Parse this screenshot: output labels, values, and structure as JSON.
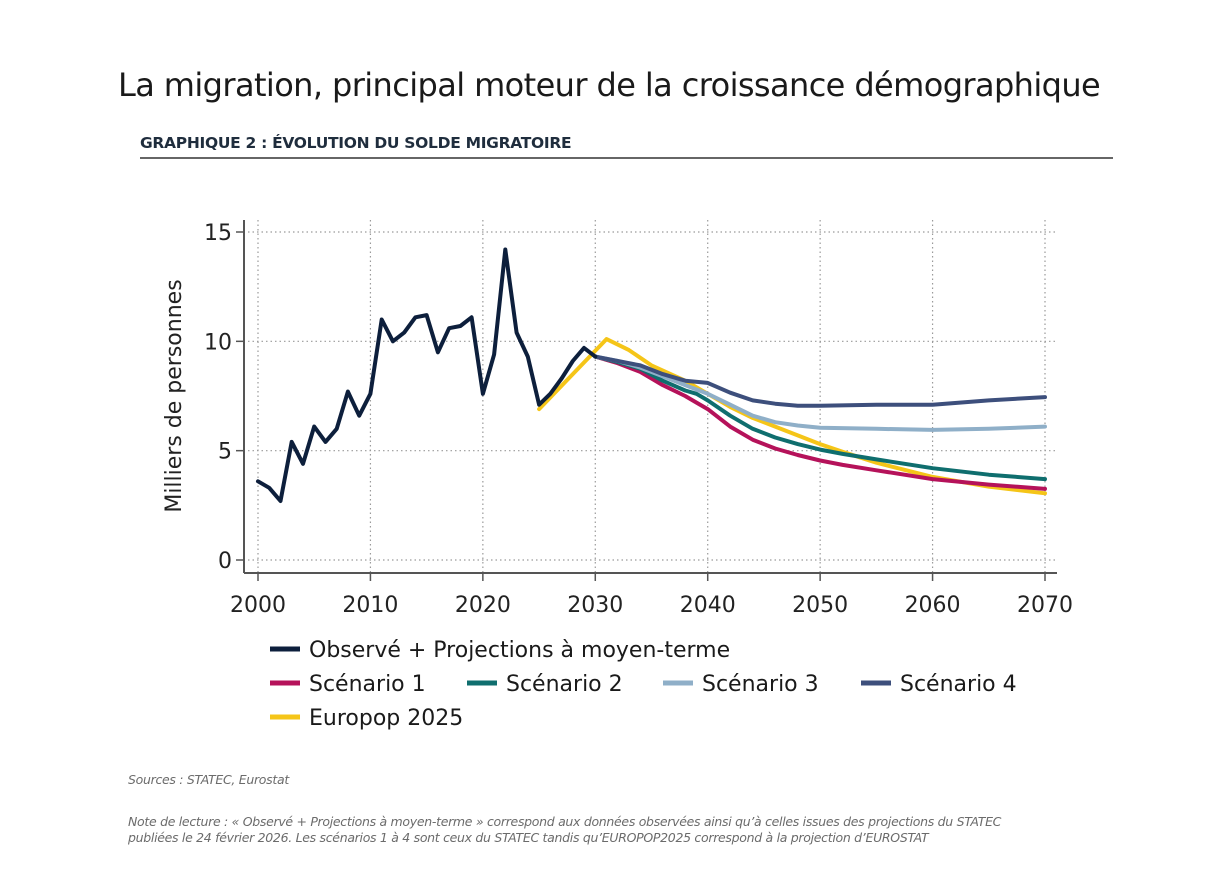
{
  "page": {
    "title": "La migration, principal moteur de la croissance démographique",
    "subtitle": "GRAPHIQUE 2 : ÉVOLUTION DU SOLDE MIGRATOIRE",
    "sources": "Sources : STATEC, Eurostat",
    "note_line1": "Note de lecture : « Observé + Projections à moyen-terme » correspond aux données observées ainsi qu’à celles issues des projections du STATEC",
    "note_line2": "publiées le 24 février 2026. Les scénarios 1 à 4 sont ceux du STATEC tandis qu’EUROPOP2025 correspond à la projection d’EUROSTAT"
  },
  "chart_data": {
    "type": "line",
    "title": "GRAPHIQUE 2 : ÉVOLUTION DU SOLDE MIGRATOIRE",
    "xlabel": "",
    "ylabel": "Milliers de personnes",
    "xlim": [
      2000,
      2070
    ],
    "ylim": [
      0,
      15
    ],
    "xticks": [
      2000,
      2010,
      2020,
      2030,
      2040,
      2050,
      2060,
      2070
    ],
    "yticks": [
      0,
      5,
      10,
      15
    ],
    "grid": true,
    "legend_position": "bottom",
    "series": [
      {
        "name": "Observé + Projections à moyen-terme",
        "color": "#0d1f3c",
        "x": [
          2000,
          2001,
          2002,
          2003,
          2004,
          2005,
          2006,
          2007,
          2008,
          2009,
          2010,
          2011,
          2012,
          2013,
          2014,
          2015,
          2016,
          2017,
          2018,
          2019,
          2020,
          2021,
          2022,
          2023,
          2024,
          2025,
          2026,
          2027,
          2028,
          2029,
          2030
        ],
        "values": [
          3.6,
          3.3,
          2.7,
          5.4,
          4.4,
          6.1,
          5.4,
          6.0,
          7.7,
          6.6,
          7.6,
          11.0,
          10.0,
          10.4,
          11.1,
          11.2,
          9.5,
          10.6,
          10.7,
          11.1,
          7.6,
          9.4,
          14.2,
          10.4,
          9.3,
          7.1,
          7.6,
          8.3,
          9.1,
          9.7,
          9.3
        ]
      },
      {
        "name": "Scénario 1",
        "color": "#b5125a",
        "x": [
          2030,
          2032,
          2034,
          2036,
          2038,
          2039,
          2040,
          2042,
          2044,
          2046,
          2048,
          2050,
          2052,
          2055,
          2060,
          2065,
          2070
        ],
        "values": [
          9.3,
          9.0,
          8.6,
          8.0,
          7.5,
          7.2,
          6.9,
          6.1,
          5.5,
          5.1,
          4.8,
          4.55,
          4.35,
          4.1,
          3.7,
          3.45,
          3.25
        ]
      },
      {
        "name": "Scénario 2",
        "color": "#0f6e6e",
        "x": [
          2030,
          2032,
          2034,
          2036,
          2038,
          2039,
          2040,
          2042,
          2044,
          2046,
          2048,
          2050,
          2052,
          2055,
          2060,
          2065,
          2070
        ],
        "values": [
          9.3,
          9.05,
          8.75,
          8.2,
          7.75,
          7.6,
          7.3,
          6.6,
          6.0,
          5.6,
          5.3,
          5.05,
          4.85,
          4.6,
          4.2,
          3.9,
          3.7
        ]
      },
      {
        "name": "Scénario 3",
        "color": "#8fafc8",
        "x": [
          2030,
          2032,
          2034,
          2036,
          2038,
          2040,
          2042,
          2044,
          2046,
          2048,
          2050,
          2055,
          2060,
          2065,
          2070
        ],
        "values": [
          9.3,
          9.1,
          8.8,
          8.4,
          8.0,
          7.6,
          7.1,
          6.6,
          6.3,
          6.15,
          6.05,
          6.0,
          5.95,
          6.0,
          6.1
        ]
      },
      {
        "name": "Scénario 4",
        "color": "#3d4f7c",
        "x": [
          2030,
          2032,
          2034,
          2036,
          2038,
          2040,
          2042,
          2044,
          2046,
          2048,
          2050,
          2055,
          2060,
          2065,
          2070
        ],
        "values": [
          9.3,
          9.1,
          8.9,
          8.5,
          8.2,
          8.1,
          7.65,
          7.3,
          7.15,
          7.05,
          7.05,
          7.1,
          7.1,
          7.3,
          7.45
        ]
      },
      {
        "name": "Europop 2025",
        "color": "#f5c518",
        "x": [
          2025,
          2028,
          2031,
          2033,
          2035,
          2038,
          2040,
          2042,
          2044,
          2046,
          2048,
          2050,
          2052,
          2055,
          2060,
          2065,
          2070
        ],
        "values": [
          6.9,
          8.5,
          10.1,
          9.6,
          8.9,
          8.2,
          7.6,
          7.0,
          6.5,
          6.1,
          5.7,
          5.3,
          4.95,
          4.45,
          3.8,
          3.35,
          3.05
        ]
      }
    ],
    "legend": [
      [
        "Observé + Projections à moyen-terme"
      ],
      [
        "Scénario 1",
        "Scénario 2",
        "Scénario 3",
        "Scénario 4"
      ],
      [
        "Europop 2025"
      ]
    ]
  }
}
